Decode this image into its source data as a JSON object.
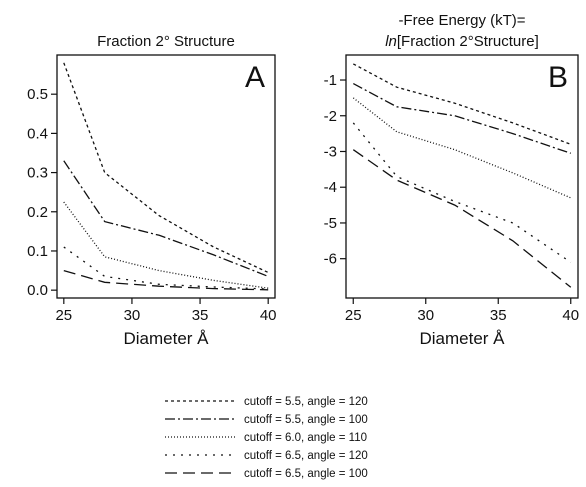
{
  "chart_data": [
    {
      "type": "line",
      "title": "Fraction 2° Structure",
      "panel_label": "A",
      "xlabel": "Diameter Å",
      "ylabel": "",
      "xlim": [
        24.5,
        40.5
      ],
      "ylim": [
        -0.02,
        0.6
      ],
      "xticks": [
        25,
        30,
        35,
        40
      ],
      "yticks": [
        0.0,
        0.1,
        0.2,
        0.3,
        0.4,
        0.5
      ],
      "ytick_labels": [
        "0.0",
        "0.1",
        "0.2",
        "0.3",
        "0.4",
        "0.5"
      ],
      "x": [
        25,
        28,
        32,
        36,
        40
      ],
      "series": [
        {
          "name": "cutoff = 5.5, angle = 120",
          "dash": "3,3",
          "values": [
            0.58,
            0.3,
            0.19,
            0.11,
            0.045
          ]
        },
        {
          "name": "cutoff = 5.5, angle = 100",
          "dash": "10,3,2,3",
          "values": [
            0.33,
            0.175,
            0.14,
            0.09,
            0.035
          ]
        },
        {
          "name": "cutoff = 6.0, angle = 110",
          "dash": "1,2",
          "values": [
            0.225,
            0.085,
            0.05,
            0.025,
            0.005
          ]
        },
        {
          "name": "cutoff = 6.5, angle = 120",
          "dash": "2,6",
          "values": [
            0.11,
            0.035,
            0.015,
            0.008,
            0.003
          ]
        },
        {
          "name": "cutoff = 6.5, angle = 100",
          "dash": "12,6",
          "values": [
            0.05,
            0.02,
            0.01,
            0.004,
            0.001
          ]
        }
      ]
    },
    {
      "type": "line",
      "title_line1": "-Free Energy (kT)=",
      "title_line2_italic": "ln",
      "title_line2_rest": "[Fraction 2°Structure]",
      "panel_label": "B",
      "xlabel": "Diameter Å",
      "ylabel": "",
      "xlim": [
        24.5,
        40.5
      ],
      "ylim": [
        -7.1,
        -0.3
      ],
      "xticks": [
        25,
        30,
        35,
        40
      ],
      "yticks": [
        -1,
        -2,
        -3,
        -4,
        -5,
        -6
      ],
      "ytick_labels": [
        "-1",
        "-2",
        "-3",
        "-4",
        "-5",
        "-6"
      ],
      "x": [
        25,
        28,
        32,
        36,
        40
      ],
      "series": [
        {
          "name": "cutoff = 5.5, angle = 120",
          "dash": "3,3",
          "values": [
            -0.55,
            -1.2,
            -1.65,
            -2.2,
            -2.8
          ]
        },
        {
          "name": "cutoff = 5.5, angle = 100",
          "dash": "10,3,2,3",
          "values": [
            -1.1,
            -1.75,
            -2.0,
            -2.5,
            -3.05
          ]
        },
        {
          "name": "cutoff = 6.0, angle = 110",
          "dash": "1,2",
          "values": [
            -1.5,
            -2.45,
            -2.95,
            -3.6,
            -4.3
          ]
        },
        {
          "name": "cutoff = 6.5, angle = 120",
          "dash": "2,6",
          "values": [
            -2.2,
            -3.7,
            -4.4,
            -5.0,
            -6.1
          ]
        },
        {
          "name": "cutoff = 6.5, angle = 100",
          "dash": "12,6",
          "values": [
            -2.95,
            -3.8,
            -4.5,
            -5.5,
            -6.8
          ]
        }
      ]
    }
  ],
  "legend": [
    {
      "label": "cutoff = 5.5, angle = 120",
      "dash": "3,3"
    },
    {
      "label": "cutoff = 5.5, angle = 100",
      "dash": "10,3,2,3"
    },
    {
      "label": "cutoff = 6.0, angle = 110",
      "dash": "1,2"
    },
    {
      "label": "cutoff = 6.5, angle = 120",
      "dash": "2,6"
    },
    {
      "label": "cutoff = 6.5, angle = 100",
      "dash": "12,6"
    }
  ]
}
